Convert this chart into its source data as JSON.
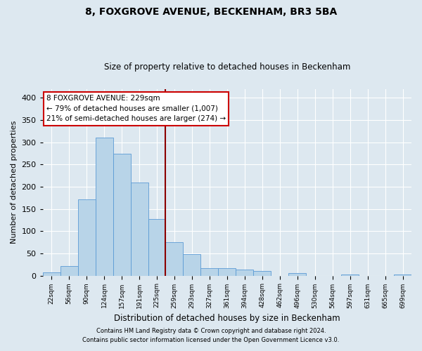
{
  "title": "8, FOXGROVE AVENUE, BECKENHAM, BR3 5BA",
  "subtitle": "Size of property relative to detached houses in Beckenham",
  "xlabel": "Distribution of detached houses by size in Beckenham",
  "ylabel": "Number of detached properties",
  "bin_labels": [
    "22sqm",
    "56sqm",
    "90sqm",
    "124sqm",
    "157sqm",
    "191sqm",
    "225sqm",
    "259sqm",
    "293sqm",
    "327sqm",
    "361sqm",
    "394sqm",
    "428sqm",
    "462sqm",
    "496sqm",
    "530sqm",
    "564sqm",
    "597sqm",
    "631sqm",
    "665sqm",
    "699sqm"
  ],
  "bar_heights": [
    8,
    22,
    172,
    310,
    275,
    210,
    127,
    75,
    48,
    17,
    16,
    14,
    10,
    0,
    5,
    0,
    0,
    3,
    0,
    0,
    3
  ],
  "bar_color": "#b8d4e8",
  "bar_edge_color": "#5b9bd5",
  "background_color": "#dde8f0",
  "vline_color": "#8b0000",
  "annotation_box_color": "#ffffff",
  "annotation_box_edge": "#cc0000",
  "footer_line1": "Contains HM Land Registry data © Crown copyright and database right 2024.",
  "footer_line2": "Contains public sector information licensed under the Open Government Licence v3.0.",
  "ylim": [
    0,
    420
  ],
  "yticks": [
    0,
    50,
    100,
    150,
    200,
    250,
    300,
    350,
    400
  ],
  "vline_idx": 7
}
